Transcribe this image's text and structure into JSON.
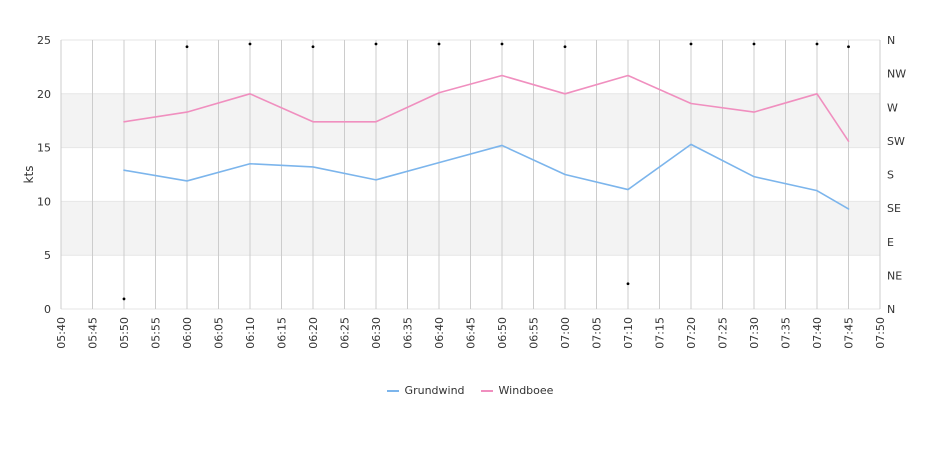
{
  "chart_data": {
    "type": "line",
    "ylabel": "kts",
    "ylim": [
      0,
      25
    ],
    "y_ticks": [
      0,
      5,
      10,
      15,
      20,
      25
    ],
    "y2_ticks": [
      "N",
      "NE",
      "E",
      "SE",
      "S",
      "SW",
      "W",
      "NW",
      "N"
    ],
    "x_ticks": [
      "05:40",
      "05:45",
      "05:50",
      "05:55",
      "06:00",
      "06:05",
      "06:10",
      "06:15",
      "06:20",
      "06:25",
      "06:30",
      "06:35",
      "06:40",
      "06:45",
      "06:50",
      "06:55",
      "07:00",
      "07:05",
      "07:10",
      "07:15",
      "07:20",
      "07:25",
      "07:30",
      "07:35",
      "07:40",
      "07:45",
      "07:50"
    ],
    "x": [
      "05:50",
      "06:00",
      "06:10",
      "06:20",
      "06:30",
      "06:40",
      "06:50",
      "07:00",
      "07:10",
      "07:20",
      "07:30",
      "07:40",
      "07:45"
    ],
    "series": [
      {
        "name": "Grundwind",
        "color": "#7cb5ec",
        "values": [
          12.9,
          11.9,
          13.5,
          13.2,
          12.0,
          13.6,
          15.2,
          12.5,
          11.1,
          15.3,
          12.3,
          11.0,
          9.3
        ]
      },
      {
        "name": "Windboee",
        "color": "#f08fbf",
        "values": [
          17.4,
          18.3,
          20.0,
          17.4,
          17.4,
          20.1,
          21.7,
          20.0,
          21.7,
          19.1,
          18.3,
          20.0,
          15.6
        ]
      }
    ],
    "direction_points": [
      {
        "x": "05:50",
        "dir_index": 0.3
      },
      {
        "x": "06:00",
        "dir_index": 7.8
      },
      {
        "x": "06:10",
        "dir_index": 8.0
      },
      {
        "x": "06:20",
        "dir_index": 7.8
      },
      {
        "x": "06:30",
        "dir_index": 8.0
      },
      {
        "x": "06:40",
        "dir_index": 8.0
      },
      {
        "x": "06:50",
        "dir_index": 8.0
      },
      {
        "x": "07:00",
        "dir_index": 7.8
      },
      {
        "x": "07:10",
        "dir_index": 0.75
      },
      {
        "x": "07:20",
        "dir_index": 8.0
      },
      {
        "x": "07:30",
        "dir_index": 8.0
      },
      {
        "x": "07:40",
        "dir_index": 8.0
      },
      {
        "x": "07:45",
        "dir_index": 7.8
      }
    ],
    "bands": [
      [
        5,
        10
      ],
      [
        15,
        20
      ]
    ],
    "grid": true,
    "legend_position": "bottom"
  }
}
